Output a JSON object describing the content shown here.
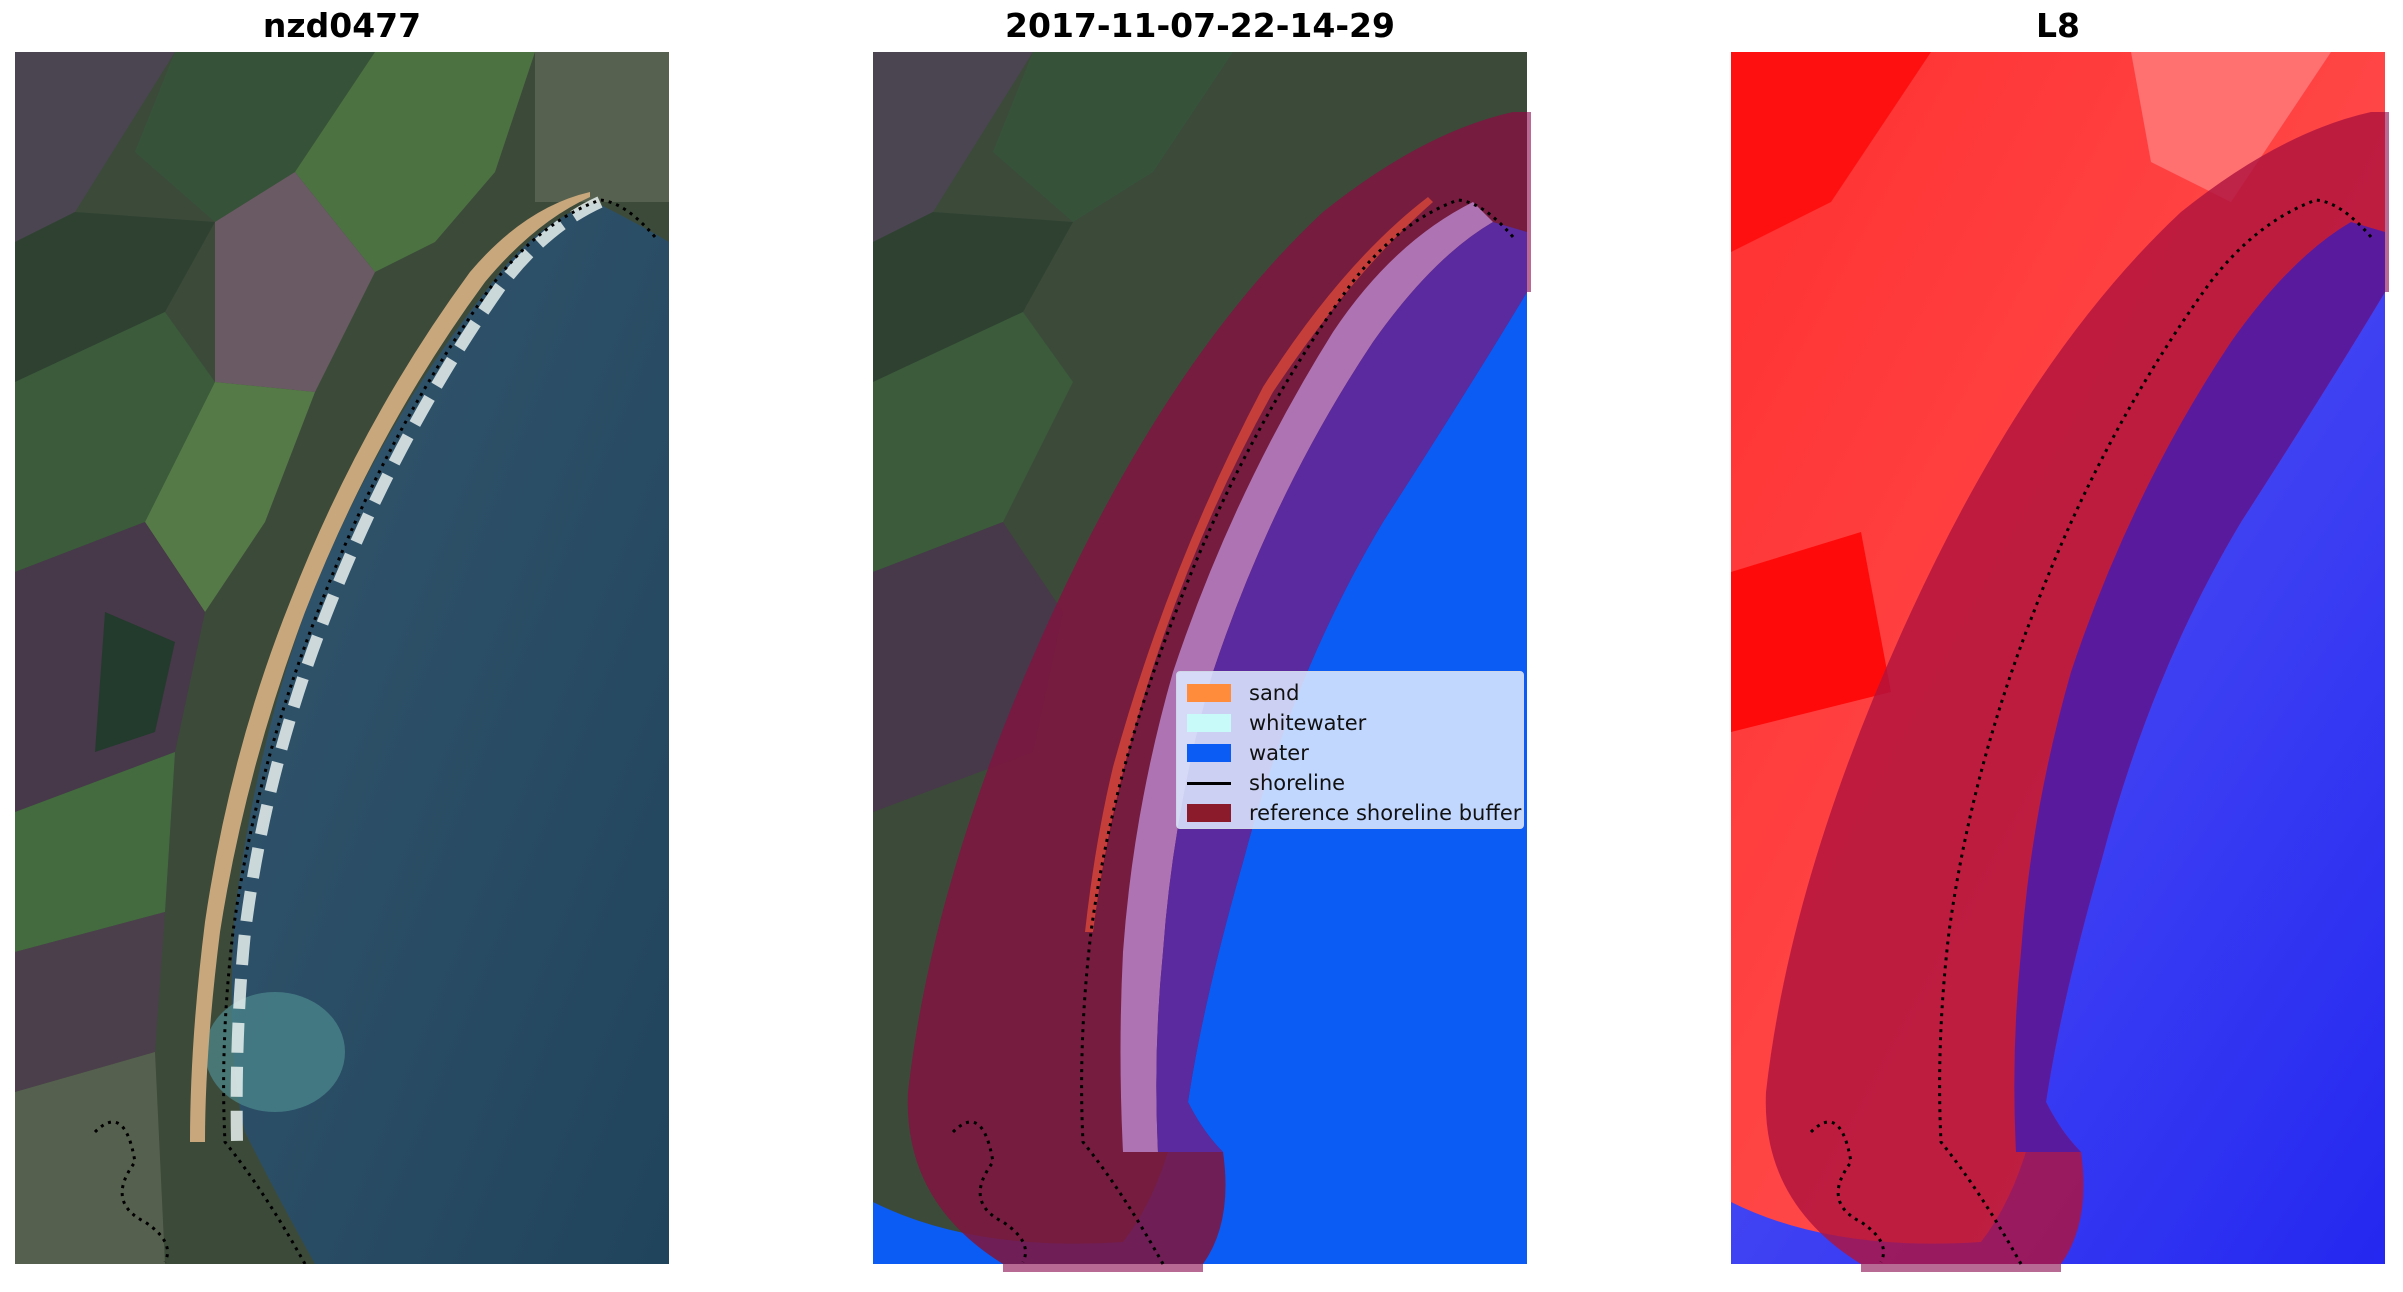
{
  "panels": [
    {
      "title": "nzd0477"
    },
    {
      "title": "2017-11-07-22-14-29"
    },
    {
      "title": "L8"
    }
  ],
  "legend": {
    "items": [
      {
        "label": "sand",
        "color": "#ff8c3a"
      },
      {
        "label": "whitewater",
        "color": "#c8fafa"
      },
      {
        "label": "water",
        "color": "#0a5cf5"
      },
      {
        "label": "shoreline",
        "color": "#000000"
      },
      {
        "label": "reference shoreline buffer",
        "color": "#8b1a2a"
      }
    ]
  },
  "colors": {
    "land_dark": "#3b4a3a",
    "field_green": "#40633d",
    "sea": "#2b4f66",
    "beach": "#c9a77c",
    "buffer": "#7d1640",
    "water_class": "#0a5cf5",
    "mndwi_land": "#ff1a1a",
    "mndwi_water": "#2b2ff5"
  }
}
